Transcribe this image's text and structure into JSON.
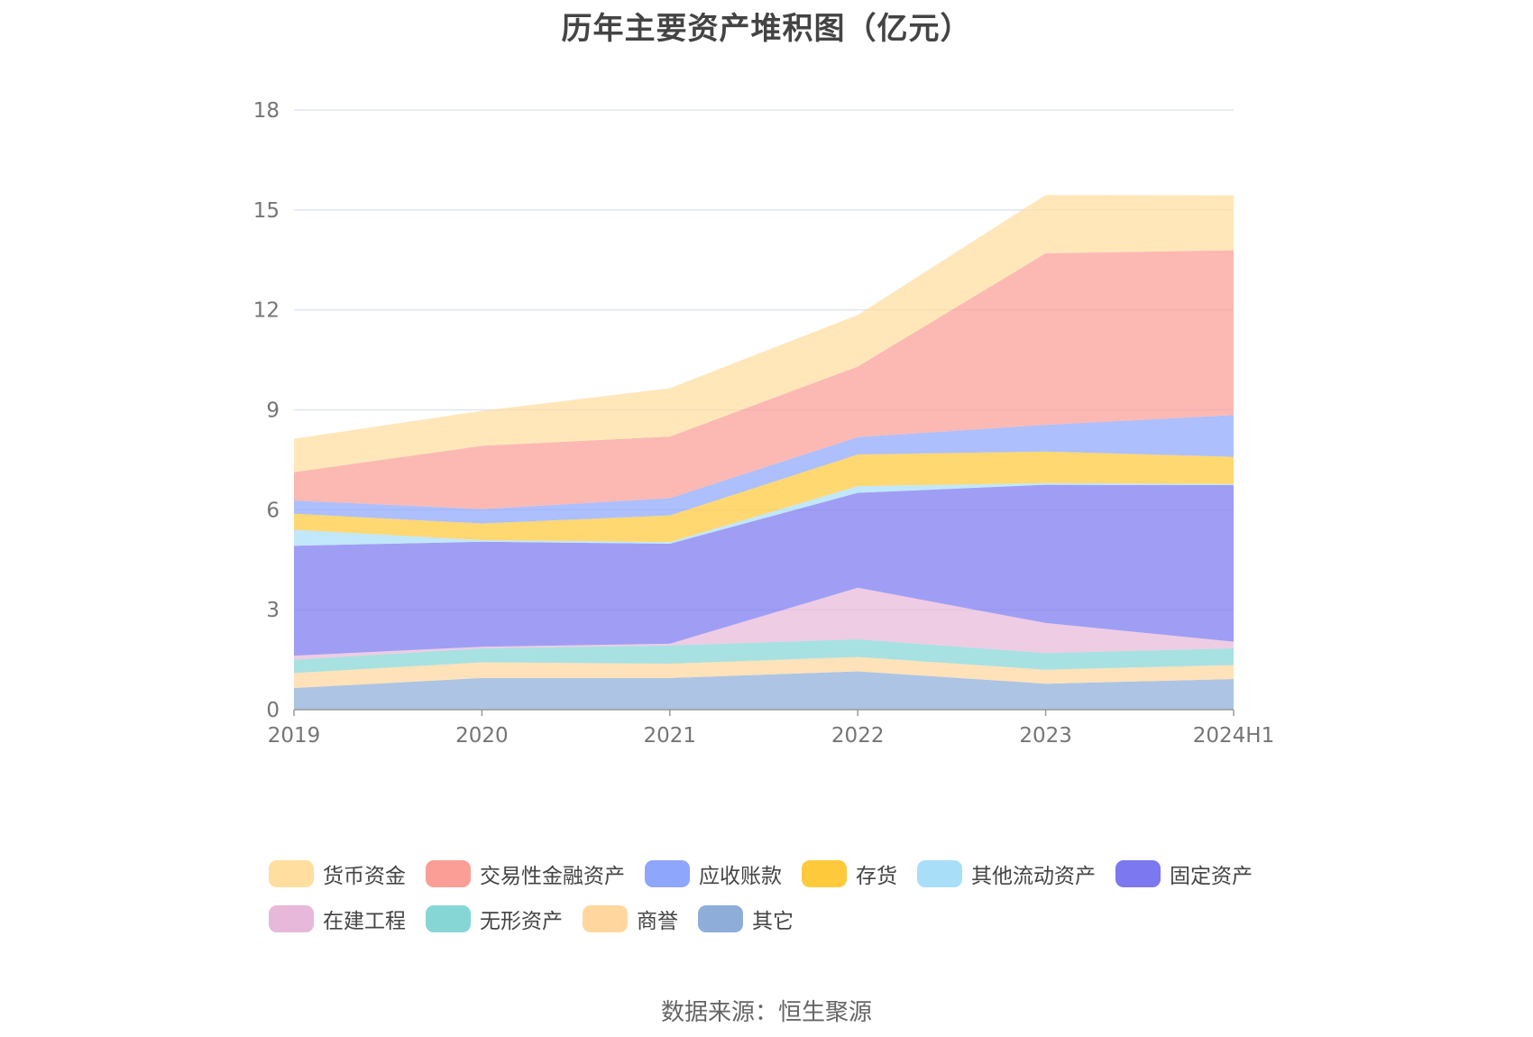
{
  "chart_data": {
    "type": "area",
    "stacked": true,
    "title": "历年主要资产堆积图（亿元）",
    "x": [
      "2019",
      "2020",
      "2021",
      "2022",
      "2023",
      "2024H1"
    ],
    "ylim": [
      0,
      18
    ],
    "yticks": [
      0,
      3,
      6,
      9,
      12,
      15,
      18
    ],
    "grid": true,
    "legend_position": "bottom",
    "series": [
      {
        "name": "其它",
        "color": "#8eadd9",
        "values": [
          0.65,
          0.95,
          0.95,
          1.15,
          0.78,
          0.92
        ]
      },
      {
        "name": "商誉",
        "color": "#ffd79e",
        "values": [
          0.45,
          0.47,
          0.43,
          0.43,
          0.42,
          0.42
        ]
      },
      {
        "name": "无形资产",
        "color": "#86d6d6",
        "values": [
          0.4,
          0.42,
          0.55,
          0.53,
          0.5,
          0.5
        ]
      },
      {
        "name": "在建工程",
        "color": "#e7b8d9",
        "values": [
          0.12,
          0.05,
          0.05,
          1.55,
          0.9,
          0.2
        ]
      },
      {
        "name": "固定资产",
        "color": "#7b78f0",
        "values": [
          3.3,
          3.15,
          3.0,
          2.85,
          4.15,
          4.7
        ]
      },
      {
        "name": "其他流动资产",
        "color": "#a9def9",
        "values": [
          0.48,
          0.05,
          0.05,
          0.2,
          0.05,
          0.03
        ]
      },
      {
        "name": "存货",
        "color": "#ffc93c",
        "values": [
          0.48,
          0.5,
          0.8,
          0.95,
          0.95,
          0.82
        ]
      },
      {
        "name": "应收账款",
        "color": "#8ea6fb",
        "values": [
          0.4,
          0.43,
          0.52,
          0.52,
          0.8,
          1.25
        ]
      },
      {
        "name": "交易性金融资产",
        "color": "#fb9e96",
        "values": [
          0.85,
          1.9,
          1.85,
          2.12,
          5.15,
          4.95
        ]
      },
      {
        "name": "货币资金",
        "color": "#ffdea0",
        "values": [
          1.0,
          1.05,
          1.45,
          1.55,
          1.75,
          1.65
        ]
      }
    ]
  },
  "legend": {
    "rows": [
      [
        "货币资金",
        "交易性金融资产",
        "应收账款",
        "存货",
        "其他流动资产",
        "固定资产"
      ],
      [
        "在建工程",
        "无形资产",
        "商誉",
        "其它"
      ]
    ]
  },
  "source": "数据来源：恒生聚源"
}
